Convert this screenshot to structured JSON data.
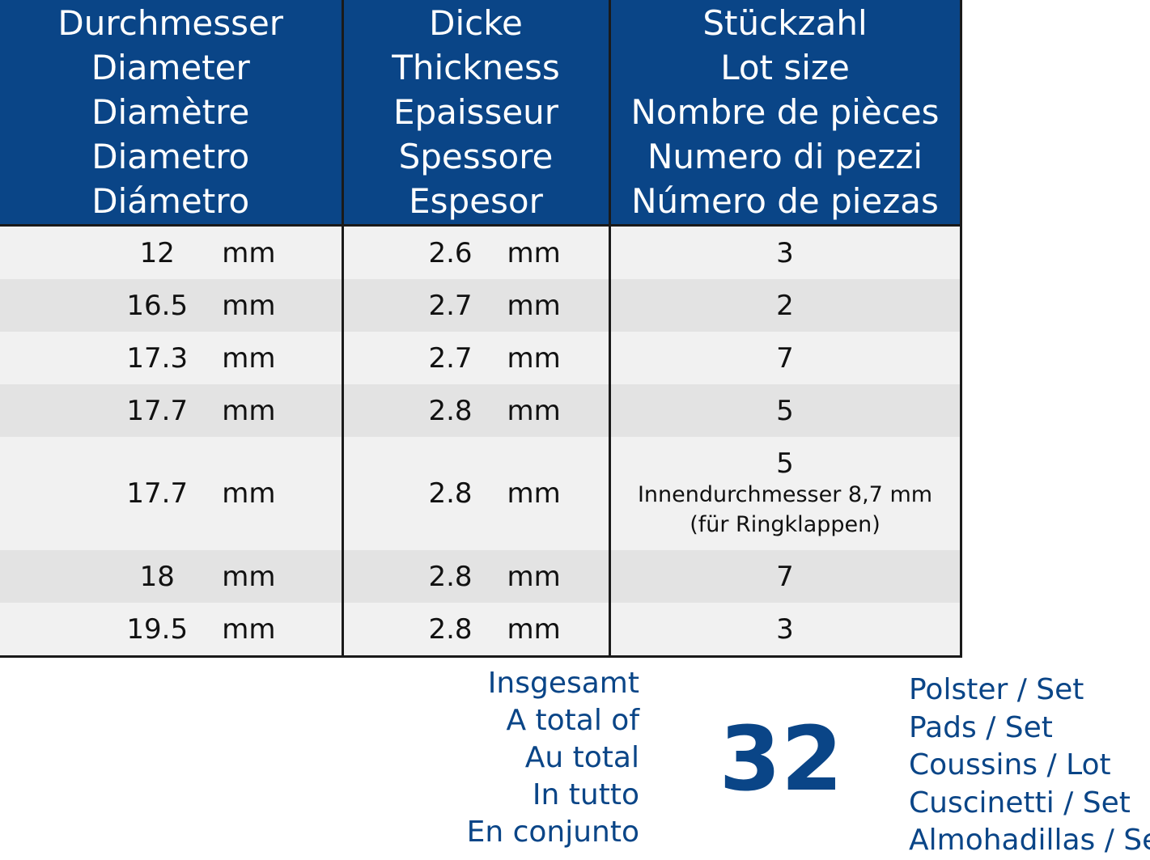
{
  "headers": {
    "diameter": [
      "Durchmesser",
      "Diameter",
      "Diamètre",
      "Diametro",
      "Diámetro"
    ],
    "thickness": [
      "Dicke",
      "Thickness",
      "Epaisseur",
      "Spessore",
      "Espesor"
    ],
    "lot_size": [
      "Stückzahl",
      "Lot size",
      "Nombre de pièces",
      "Numero di pezzi",
      "Número de piezas"
    ]
  },
  "rows": [
    {
      "diameter": "12",
      "diameter_unit": "mm",
      "thickness": "2.6",
      "thickness_unit": "mm",
      "count": "3"
    },
    {
      "diameter": "16.5",
      "diameter_unit": "mm",
      "thickness": "2.7",
      "thickness_unit": "mm",
      "count": "2"
    },
    {
      "diameter": "17.3",
      "diameter_unit": "mm",
      "thickness": "2.7",
      "thickness_unit": "mm",
      "count": "7"
    },
    {
      "diameter": "17.7",
      "diameter_unit": "mm",
      "thickness": "2.8",
      "thickness_unit": "mm",
      "count": "5"
    },
    {
      "diameter": "17.7",
      "diameter_unit": "mm",
      "thickness": "2.8",
      "thickness_unit": "mm",
      "count": "5",
      "note": [
        "Innendurchmesser 8,7 mm",
        "(für Ringklappen)"
      ]
    },
    {
      "diameter": "18",
      "diameter_unit": "mm",
      "thickness": "2.8",
      "thickness_unit": "mm",
      "count": "7"
    },
    {
      "diameter": "19.5",
      "diameter_unit": "mm",
      "thickness": "2.8",
      "thickness_unit": "mm",
      "count": "3"
    }
  ],
  "total": {
    "labels": [
      "Insgesamt",
      "A total of",
      "Au total",
      "In tutto",
      "En conjunto"
    ],
    "value": "32",
    "units": [
      "Polster / Set",
      "Pads / Set",
      "Coussins / Lot",
      "Cuscinetti / Set",
      "Almohadillas / Set"
    ]
  },
  "colors": {
    "header_bg": "#0a4587",
    "accent_text": "#0a4587",
    "row_light": "#f1f1f1",
    "row_dark": "#e3e3e3"
  }
}
